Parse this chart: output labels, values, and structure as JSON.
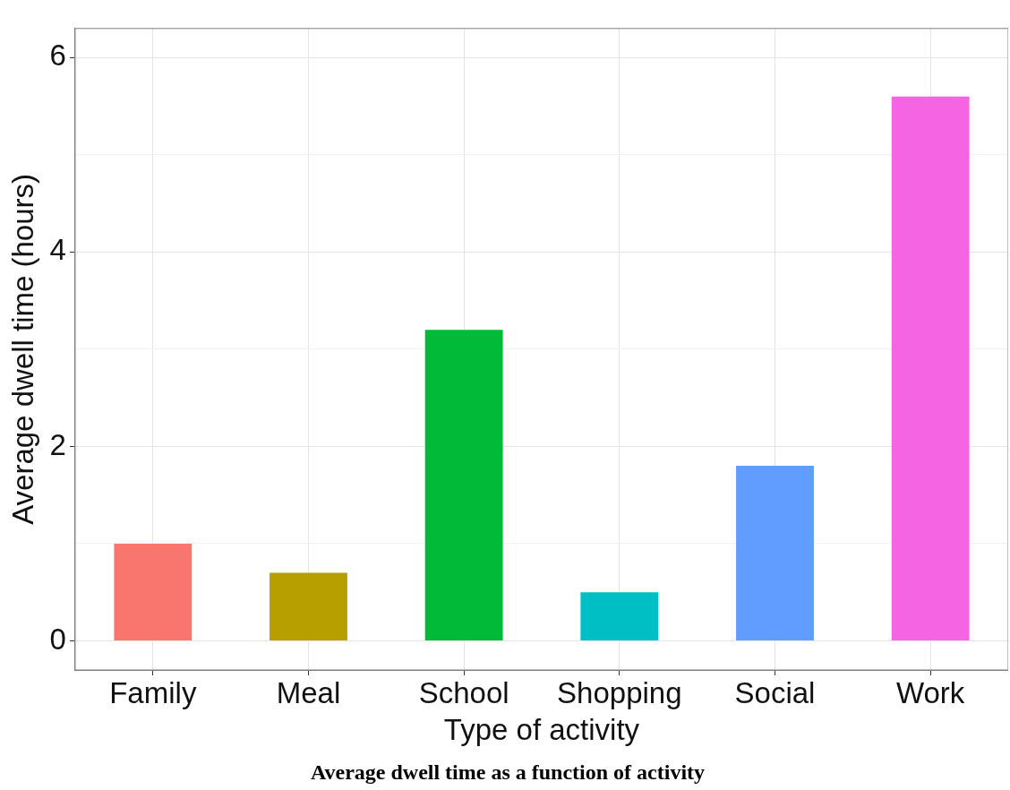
{
  "chart_data": {
    "type": "bar",
    "title": "Average dwell time as a function of activity",
    "xlabel": "Type of activity",
    "ylabel": "Average dwell time (hours)",
    "categories": [
      "Family",
      "Meal",
      "School",
      "Shopping",
      "Social",
      "Work"
    ],
    "values": [
      1.0,
      0.7,
      3.2,
      0.5,
      1.8,
      5.6
    ],
    "colors": [
      "#f8766d",
      "#b79f00",
      "#00ba38",
      "#00bfc4",
      "#619cff",
      "#f564e3"
    ],
    "ylim": [
      -0.3,
      6.3
    ],
    "yticks": [
      0,
      {
        "value": 1,
        "label": null
      },
      2,
      {
        "value": 3,
        "label": null
      },
      4,
      {
        "value": 5,
        "label": null
      },
      6
    ],
    "grid": true
  }
}
